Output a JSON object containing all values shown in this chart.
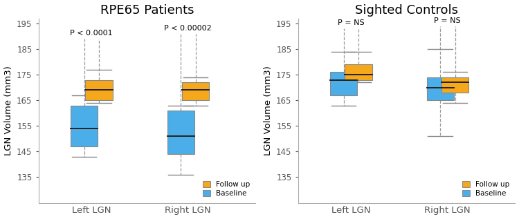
{
  "panels": [
    {
      "title": "RPE65 Patients",
      "groups": [
        "Left LGN",
        "Right LGN"
      ],
      "boxes": [
        {
          "group": "Left LGN",
          "baseline": {
            "whisker_low": 143,
            "q1": 147,
            "median": 154,
            "q3": 163,
            "whisker_high": 167,
            "flier_high": 189
          },
          "followup": {
            "whisker_low": 164,
            "q1": 165,
            "median": 169,
            "q3": 173,
            "whisker_high": 177,
            "flier_high": 189
          }
        },
        {
          "group": "Right LGN",
          "baseline": {
            "whisker_low": 136,
            "q1": 144,
            "median": 151,
            "q3": 161,
            "whisker_high": 163,
            "flier_high": 191
          },
          "followup": {
            "whisker_low": 163,
            "q1": 165,
            "median": 169,
            "q3": 172,
            "whisker_high": 174,
            "flier_high": 191
          }
        }
      ],
      "pvalues": [
        "P < 0.0001",
        "P < 0.00002"
      ],
      "ylim": [
        125,
        197
      ],
      "yticks": [
        135,
        145,
        155,
        165,
        175,
        185,
        195
      ],
      "show_ylabel": true
    },
    {
      "title": "Sighted Controls",
      "groups": [
        "Left LGN",
        "Right LGN"
      ],
      "boxes": [
        {
          "group": "Left LGN",
          "baseline": {
            "whisker_low": 163,
            "q1": 167,
            "median": 173,
            "q3": 176,
            "whisker_high": 184,
            "flier_high": 193
          },
          "followup": {
            "whisker_low": 172,
            "q1": 173,
            "median": 175,
            "q3": 179,
            "whisker_high": 184,
            "flier_high": 193
          }
        },
        {
          "group": "Right LGN",
          "baseline": {
            "whisker_low": 151,
            "q1": 165,
            "median": 170,
            "q3": 174,
            "whisker_high": 185,
            "flier_high": 194
          },
          "followup": {
            "whisker_low": 164,
            "q1": 168,
            "median": 172,
            "q3": 174,
            "whisker_high": 176,
            "flier_high": 194
          }
        }
      ],
      "pvalues": [
        "P = NS",
        "P = NS"
      ],
      "ylim": [
        125,
        197
      ],
      "yticks": [
        135,
        145,
        155,
        165,
        175,
        185,
        195
      ],
      "show_ylabel": true
    }
  ],
  "baseline_color": "#4BAEE8",
  "followup_color": "#F5A81C",
  "box_width": 0.28,
  "group_positions": [
    1.0,
    2.0
  ],
  "xlim": [
    0.45,
    2.7
  ],
  "title_fontsize": 13,
  "label_fontsize": 9.5,
  "tick_fontsize": 8.5,
  "pval_fontsize": 8,
  "legend_labels": [
    "Follow up",
    "Baseline"
  ],
  "legend_colors": [
    "#F5A81C",
    "#4BAEE8"
  ]
}
